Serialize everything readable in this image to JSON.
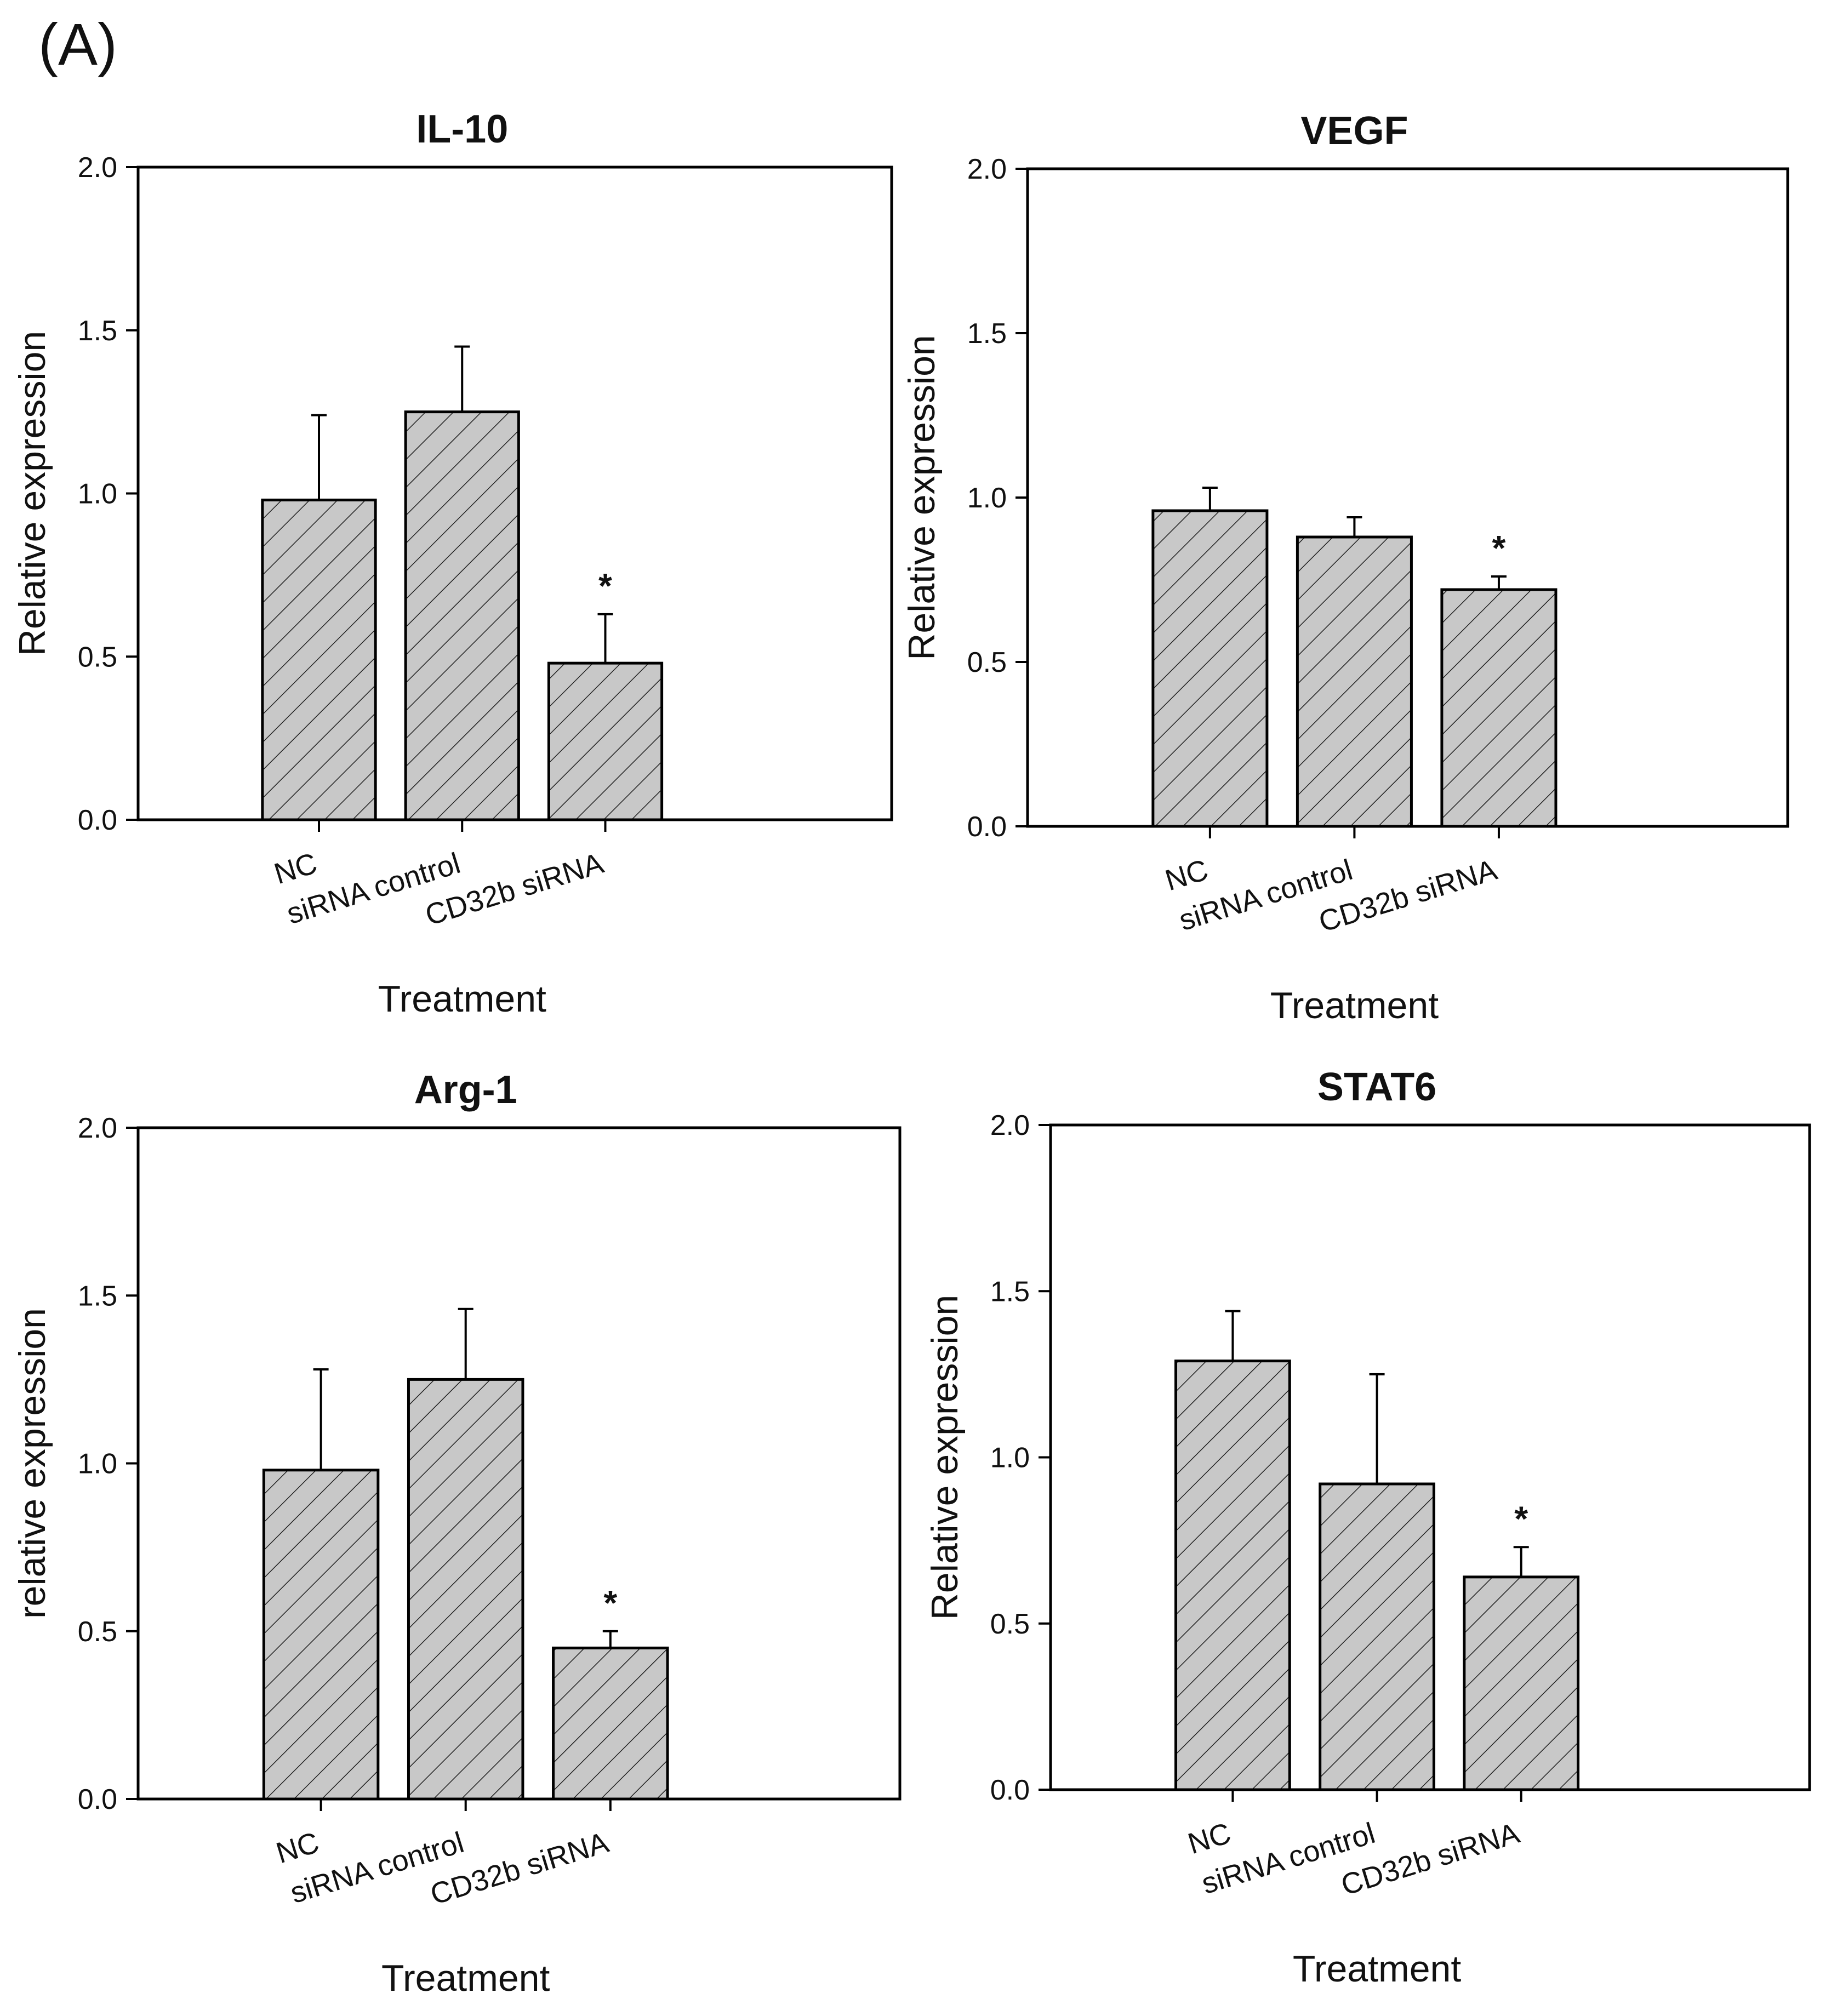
{
  "figure": {
    "panel_label": "(A)",
    "colors": {
      "bar_fill": "#c8c8c8",
      "hatch": "#222222",
      "axis": "#000000",
      "text": "#111111"
    }
  },
  "chart_data": [
    {
      "type": "bar",
      "title": "IL-10",
      "categories": [
        "NC",
        "siRNA control",
        "CD32b siRNA"
      ],
      "values": [
        0.98,
        1.25,
        0.48
      ],
      "errors": [
        0.26,
        0.2,
        0.15
      ],
      "significance": [
        "",
        "",
        "*"
      ],
      "xlabel": "Treatment",
      "ylabel": "Relative expression",
      "ylim": [
        0,
        2.0
      ],
      "yticks": [
        "0.0",
        "0.5",
        "1.0",
        "1.5",
        "2.0"
      ],
      "pattern": "diagonal hatch",
      "grid": false
    },
    {
      "type": "bar",
      "title": "VEGF",
      "categories": [
        "NC",
        "siRNA control",
        "CD32b siRNA"
      ],
      "values": [
        0.96,
        0.88,
        0.72
      ],
      "errors": [
        0.07,
        0.06,
        0.04
      ],
      "significance": [
        "",
        "",
        "*"
      ],
      "xlabel": "Treatment",
      "ylabel": "Relative expression",
      "ylim": [
        0,
        2.0
      ],
      "yticks": [
        "0.0",
        "0.5",
        "1.0",
        "1.5",
        "2.0"
      ],
      "pattern": "diagonal hatch",
      "grid": false
    },
    {
      "type": "bar",
      "title": "Arg-1",
      "categories": [
        "NC",
        "siRNA control",
        "CD32b siRNA"
      ],
      "values": [
        0.98,
        1.25,
        0.45
      ],
      "errors": [
        0.3,
        0.21,
        0.05
      ],
      "significance": [
        "",
        "",
        "*"
      ],
      "xlabel": "Treatment",
      "ylabel": "relative expression",
      "ylim": [
        0,
        2.0
      ],
      "yticks": [
        "0.0",
        "0.5",
        "1.0",
        "1.5",
        "2.0"
      ],
      "pattern": "diagonal hatch",
      "grid": false
    },
    {
      "type": "bar",
      "title": "STAT6",
      "categories": [
        "NC",
        "siRNA control",
        "CD32b siRNA"
      ],
      "values": [
        1.29,
        0.92,
        0.64
      ],
      "errors": [
        0.15,
        0.33,
        0.09
      ],
      "significance": [
        "",
        "",
        "*"
      ],
      "xlabel": "Treatment",
      "ylabel": "Relative expression",
      "ylim": [
        0,
        2.0
      ],
      "yticks": [
        "0.0",
        "0.5",
        "1.0",
        "1.5",
        "2.0"
      ],
      "pattern": "diagonal hatch",
      "grid": false
    }
  ]
}
